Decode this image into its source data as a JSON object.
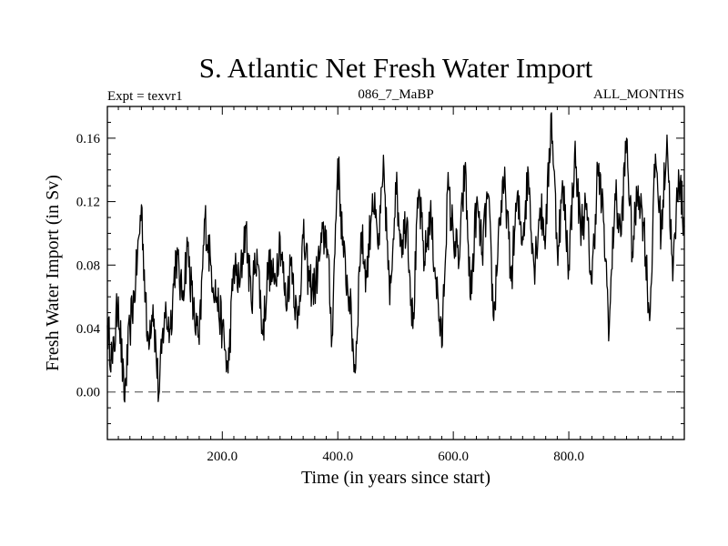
{
  "chart_data": {
    "type": "line",
    "title": "S. Atlantic Net Fresh Water Import",
    "subtitle_left": "Expt = texvr1",
    "subtitle_center": "086_7_MaBP",
    "subtitle_right": "ALL_MONTHS",
    "xlabel": "Time (in years since start)",
    "ylabel": "Fresh Water Import (in Sv)",
    "xlim": [
      1,
      1000
    ],
    "ylim": [
      -0.03,
      0.18
    ],
    "x_ticks": [
      200,
      400,
      600,
      800
    ],
    "x_tick_labels": [
      "200.0",
      "400.0",
      "600.0",
      "800.0"
    ],
    "y_ticks": [
      0.0,
      0.04,
      0.08,
      0.12,
      0.16
    ],
    "y_tick_labels": [
      "0.00",
      "0.04",
      "0.08",
      "0.12",
      "0.16"
    ],
    "reference_line": {
      "y": 0.0,
      "style": "dashed"
    },
    "series": [
      {
        "name": "S. Atlantic Net Fresh Water Import",
        "x": [
          1,
          10,
          20,
          30,
          40,
          50,
          60,
          70,
          80,
          90,
          100,
          110,
          120,
          130,
          140,
          150,
          160,
          170,
          180,
          190,
          200,
          210,
          220,
          230,
          240,
          250,
          260,
          270,
          280,
          290,
          300,
          310,
          320,
          330,
          340,
          350,
          360,
          370,
          380,
          390,
          400,
          410,
          420,
          430,
          440,
          450,
          460,
          470,
          480,
          490,
          500,
          510,
          520,
          530,
          540,
          550,
          560,
          570,
          580,
          590,
          600,
          610,
          620,
          630,
          640,
          650,
          660,
          670,
          680,
          690,
          700,
          710,
          720,
          730,
          740,
          750,
          760,
          770,
          780,
          790,
          800,
          810,
          820,
          830,
          840,
          850,
          860,
          870,
          880,
          890,
          900,
          910,
          920,
          930,
          940,
          950,
          960,
          970,
          980,
          990,
          1000
        ],
        "values": [
          0.042,
          0.018,
          0.06,
          -0.005,
          0.04,
          0.07,
          0.118,
          0.032,
          0.055,
          -0.002,
          0.05,
          0.04,
          0.088,
          0.06,
          0.092,
          0.05,
          0.03,
          0.11,
          0.08,
          0.06,
          0.04,
          0.012,
          0.08,
          0.066,
          0.105,
          0.058,
          0.09,
          0.036,
          0.08,
          0.068,
          0.098,
          0.055,
          0.085,
          0.04,
          0.097,
          0.07,
          0.065,
          0.09,
          0.102,
          0.035,
          0.147,
          0.085,
          0.06,
          0.012,
          0.1,
          0.072,
          0.125,
          0.09,
          0.14,
          0.055,
          0.132,
          0.095,
          0.11,
          0.04,
          0.126,
          0.082,
          0.112,
          0.072,
          0.028,
          0.128,
          0.1,
          0.082,
          0.142,
          0.058,
          0.118,
          0.088,
          0.125,
          0.045,
          0.11,
          0.13,
          0.07,
          0.12,
          0.098,
          0.138,
          0.078,
          0.116,
          0.1,
          0.176,
          0.09,
          0.128,
          0.08,
          0.15,
          0.105,
          0.115,
          0.068,
          0.142,
          0.108,
          0.04,
          0.125,
          0.098,
          0.16,
          0.088,
          0.13,
          0.105,
          0.045,
          0.15,
          0.1,
          0.162,
          0.07,
          0.14,
          0.104
        ]
      }
    ]
  }
}
